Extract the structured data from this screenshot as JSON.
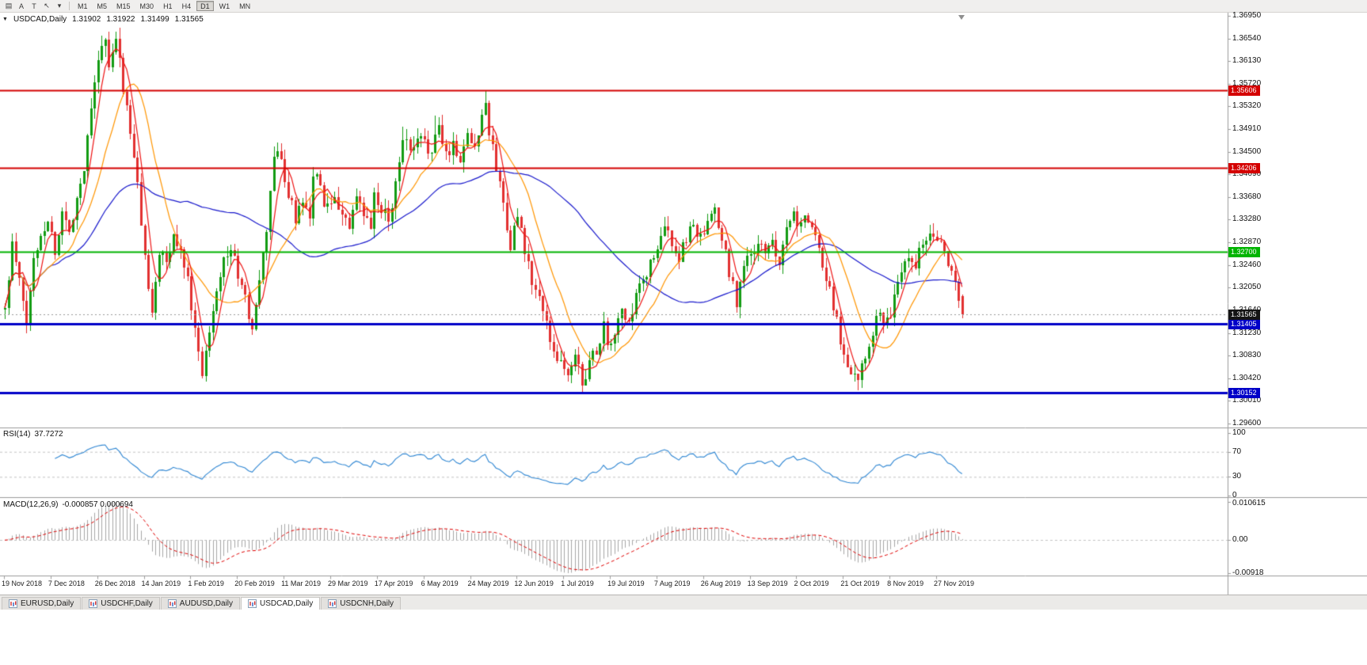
{
  "toolbar": {
    "icons": [
      {
        "name": "charts-grid-icon",
        "glyph": "▤"
      },
      {
        "name": "letter-a-icon",
        "glyph": "A"
      },
      {
        "name": "letter-t-icon",
        "glyph": "T"
      },
      {
        "name": "cursor-icon",
        "glyph": "↖"
      },
      {
        "name": "caret-down-icon",
        "glyph": "▾"
      }
    ],
    "timeframes": [
      {
        "label": "M1",
        "active": false
      },
      {
        "label": "M5",
        "active": false
      },
      {
        "label": "M15",
        "active": false
      },
      {
        "label": "M30",
        "active": false
      },
      {
        "label": "H1",
        "active": false
      },
      {
        "label": "H4",
        "active": false
      },
      {
        "label": "D1",
        "active": true
      },
      {
        "label": "W1",
        "active": false
      },
      {
        "label": "MN",
        "active": false
      }
    ]
  },
  "chart": {
    "symbol_line": {
      "collapse_icon": "▼",
      "symbol": "USDCAD,Daily",
      "open": "1.31902",
      "high": "1.31922",
      "low": "1.31499",
      "close": "1.31565"
    },
    "price_axis_ticks": [
      "1.36950",
      "1.36540",
      "1.36130",
      "1.35720",
      "1.35320",
      "1.34910",
      "1.34500",
      "1.34090",
      "1.33680",
      "1.33280",
      "1.32870",
      "1.32460",
      "1.32050",
      "1.31640",
      "1.31230",
      "1.30830",
      "1.30420",
      "1.30010",
      "1.29600"
    ],
    "hlines": [
      {
        "price": 1.35606,
        "label": "1.35606",
        "color": "#d40000",
        "width": 2
      },
      {
        "price": 1.34206,
        "label": "1.34206",
        "color": "#d40000",
        "width": 2
      },
      {
        "price": 1.327,
        "label": "1.32700",
        "color": "#00b400",
        "width": 2
      },
      {
        "price": 1.31405,
        "label": "1.31405",
        "color": "#0000c8",
        "width": 3
      },
      {
        "price": 1.30152,
        "label": "1.30152",
        "color": "#0000c8",
        "width": 3
      }
    ],
    "bid": {
      "price": 1.31565,
      "label": "1.31565",
      "tag_bg": "#141414",
      "line_color": "#9a9a9a"
    },
    "last_candle": {
      "o": 1.31902,
      "h": 1.31922,
      "l": 1.31499,
      "c": 1.31565
    },
    "dates": [
      "19 Nov 2018",
      "7 Dec 2018",
      "26 Dec 2018",
      "14 Jan 2019",
      "1 Feb 2019",
      "20 Feb 2019",
      "11 Mar 2019",
      "29 Mar 2019",
      "17 Apr 2019",
      "6 May 2019",
      "24 May 2019",
      "12 Jun 2019",
      "1 Jul 2019",
      "19 Jul 2019",
      "7 Aug 2019",
      "26 Aug 2019",
      "13 Sep 2019",
      "2 Oct 2019",
      "21 Oct 2019",
      "8 Nov 2019",
      "27 Nov 2019"
    ],
    "bars_per_label": 13
  },
  "chart_data": {
    "type": "candlestick",
    "symbol": "USDCAD",
    "timeframe": "Daily",
    "bar_count": 268,
    "price_range": {
      "max": 1.3695,
      "min": 1.296
    },
    "price_anchors": [
      [
        0,
        1.3165
      ],
      [
        2,
        1.328
      ],
      [
        4,
        1.3215
      ],
      [
        6,
        1.314
      ],
      [
        8,
        1.3255
      ],
      [
        10,
        1.33
      ],
      [
        12,
        1.333
      ],
      [
        14,
        1.327
      ],
      [
        16,
        1.334
      ],
      [
        18,
        1.3305
      ],
      [
        20,
        1.337
      ],
      [
        22,
        1.342
      ],
      [
        24,
        1.354
      ],
      [
        26,
        1.362
      ],
      [
        28,
        1.3648
      ],
      [
        29,
        1.36
      ],
      [
        31,
        1.365
      ],
      [
        33,
        1.357
      ],
      [
        35,
        1.348
      ],
      [
        37,
        1.339
      ],
      [
        39,
        1.3255
      ],
      [
        41,
        1.317
      ],
      [
        43,
        1.3265
      ],
      [
        45,
        1.325
      ],
      [
        47,
        1.3295
      ],
      [
        49,
        1.327
      ],
      [
        51,
        1.3235
      ],
      [
        52,
        1.317
      ],
      [
        54,
        1.3085
      ],
      [
        55,
        1.3055
      ],
      [
        57,
        1.313
      ],
      [
        59,
        1.321
      ],
      [
        61,
        1.3255
      ],
      [
        63,
        1.3275
      ],
      [
        65,
        1.323
      ],
      [
        67,
        1.318
      ],
      [
        69,
        1.3135
      ],
      [
        71,
        1.321
      ],
      [
        73,
        1.331
      ],
      [
        75,
        1.3445
      ],
      [
        77,
        1.3435
      ],
      [
        79,
        1.337
      ],
      [
        81,
        1.333
      ],
      [
        83,
        1.3355
      ],
      [
        85,
        1.332
      ],
      [
        86,
        1.3415
      ],
      [
        88,
        1.338
      ],
      [
        90,
        1.3345
      ],
      [
        92,
        1.336
      ],
      [
        94,
        1.3345
      ],
      [
        96,
        1.331
      ],
      [
        98,
        1.336
      ],
      [
        100,
        1.3335
      ],
      [
        102,
        1.331
      ],
      [
        103,
        1.337
      ],
      [
        105,
        1.334
      ],
      [
        107,
        1.333
      ],
      [
        109,
        1.339
      ],
      [
        111,
        1.348
      ],
      [
        113,
        1.3445
      ],
      [
        115,
        1.3465
      ],
      [
        117,
        1.347
      ],
      [
        119,
        1.345
      ],
      [
        121,
        1.349
      ],
      [
        123,
        1.3445
      ],
      [
        125,
        1.3465
      ],
      [
        127,
        1.3435
      ],
      [
        129,
        1.3485
      ],
      [
        131,
        1.346
      ],
      [
        133,
        1.3515
      ],
      [
        134,
        1.355
      ],
      [
        135,
        1.348
      ],
      [
        137,
        1.3425
      ],
      [
        139,
        1.3355
      ],
      [
        141,
        1.3285
      ],
      [
        143,
        1.333
      ],
      [
        145,
        1.327
      ],
      [
        147,
        1.3215
      ],
      [
        149,
        1.3185
      ],
      [
        151,
        1.3135
      ],
      [
        153,
        1.3095
      ],
      [
        155,
        1.307
      ],
      [
        157,
        1.3045
      ],
      [
        159,
        1.308
      ],
      [
        161,
        1.304
      ],
      [
        163,
        1.3065
      ],
      [
        165,
        1.3095
      ],
      [
        167,
        1.3135
      ],
      [
        168,
        1.309
      ],
      [
        170,
        1.3125
      ],
      [
        172,
        1.316
      ],
      [
        174,
        1.3135
      ],
      [
        176,
        1.3185
      ],
      [
        178,
        1.3215
      ],
      [
        180,
        1.325
      ],
      [
        182,
        1.327
      ],
      [
        184,
        1.331
      ],
      [
        186,
        1.329
      ],
      [
        188,
        1.326
      ],
      [
        190,
        1.329
      ],
      [
        192,
        1.3325
      ],
      [
        194,
        1.329
      ],
      [
        196,
        1.3315
      ],
      [
        198,
        1.334
      ],
      [
        200,
        1.329
      ],
      [
        202,
        1.3235
      ],
      [
        204,
        1.318
      ],
      [
        206,
        1.325
      ],
      [
        208,
        1.3255
      ],
      [
        210,
        1.329
      ],
      [
        212,
        1.326
      ],
      [
        214,
        1.329
      ],
      [
        216,
        1.3255
      ],
      [
        218,
        1.332
      ],
      [
        220,
        1.334
      ],
      [
        222,
        1.3315
      ],
      [
        224,
        1.333
      ],
      [
        226,
        1.329
      ],
      [
        228,
        1.325
      ],
      [
        230,
        1.32
      ],
      [
        232,
        1.315
      ],
      [
        234,
        1.3075
      ],
      [
        236,
        1.306
      ],
      [
        238,
        1.3045
      ],
      [
        240,
        1.309
      ],
      [
        242,
        1.313
      ],
      [
        244,
        1.316
      ],
      [
        246,
        1.314
      ],
      [
        248,
        1.3185
      ],
      [
        250,
        1.323
      ],
      [
        252,
        1.327
      ],
      [
        254,
        1.325
      ],
      [
        256,
        1.329
      ],
      [
        258,
        1.331
      ],
      [
        260,
        1.33
      ],
      [
        262,
        1.3275
      ],
      [
        264,
        1.323
      ],
      [
        266,
        1.3185
      ],
      [
        267,
        1.3156
      ]
    ],
    "spike_highs": [
      [
        29,
        1.36615
      ],
      [
        31,
        1.3656
      ],
      [
        111,
        1.3495
      ],
      [
        120,
        1.3515
      ],
      [
        134,
        1.3561
      ]
    ],
    "spike_lows": [
      [
        55,
        1.3045
      ],
      [
        158,
        1.3035
      ],
      [
        161,
        1.3038
      ],
      [
        238,
        1.3042
      ]
    ],
    "horizontal_levels": [
      1.35606,
      1.34206,
      1.327,
      1.31405,
      1.30152
    ],
    "moving_averages": [
      {
        "name": "fast",
        "period": 5,
        "color": "#ee1313"
      },
      {
        "name": "medium",
        "period": 14,
        "color": "#ff9500"
      },
      {
        "name": "slow",
        "period": 50,
        "color": "#1717cc"
      }
    ],
    "colors": {
      "candle_up": "#129b12",
      "candle_down": "#e23030",
      "rsi_line": "#2e86d3",
      "macd_hist": "#a6a6a6",
      "macd_signal": "#e00000",
      "level_dash": "#c4c4c4",
      "separator": "#9c9c9c"
    },
    "indicators": [
      {
        "type": "RSI",
        "period": 14,
        "current": 37.7272,
        "levels": [
          70,
          30
        ],
        "scale": [
          0,
          100
        ]
      },
      {
        "type": "MACD",
        "fast": 12,
        "slow": 26,
        "signal": 9,
        "current_main": -0.000857,
        "current_signal": 0.000694,
        "scale": [
          -0.00918,
          0.010615
        ]
      }
    ]
  },
  "rsi": {
    "name_label": "RSI(14)",
    "value": "37.7272",
    "axis": [
      {
        "v": 100,
        "label": "100"
      },
      {
        "v": 70,
        "label": "70"
      },
      {
        "v": 30,
        "label": "30"
      },
      {
        "v": 0,
        "label": "0"
      }
    ]
  },
  "macd": {
    "name_label": "MACD(12,26,9)",
    "values": "-0.000857 0.000694",
    "axis": [
      {
        "v": 0.010615,
        "label": "0.010615"
      },
      {
        "v": 0,
        "label": "0.00"
      },
      {
        "v": -0.00918,
        "label": "-0.00918"
      }
    ]
  },
  "tabs": [
    {
      "label": "EURUSD,Daily",
      "active": false
    },
    {
      "label": "USDCHF,Daily",
      "active": false
    },
    {
      "label": "AUDUSD,Daily",
      "active": false
    },
    {
      "label": "USDCAD,Daily",
      "active": true
    },
    {
      "label": "USDCNH,Daily",
      "active": false
    }
  ]
}
